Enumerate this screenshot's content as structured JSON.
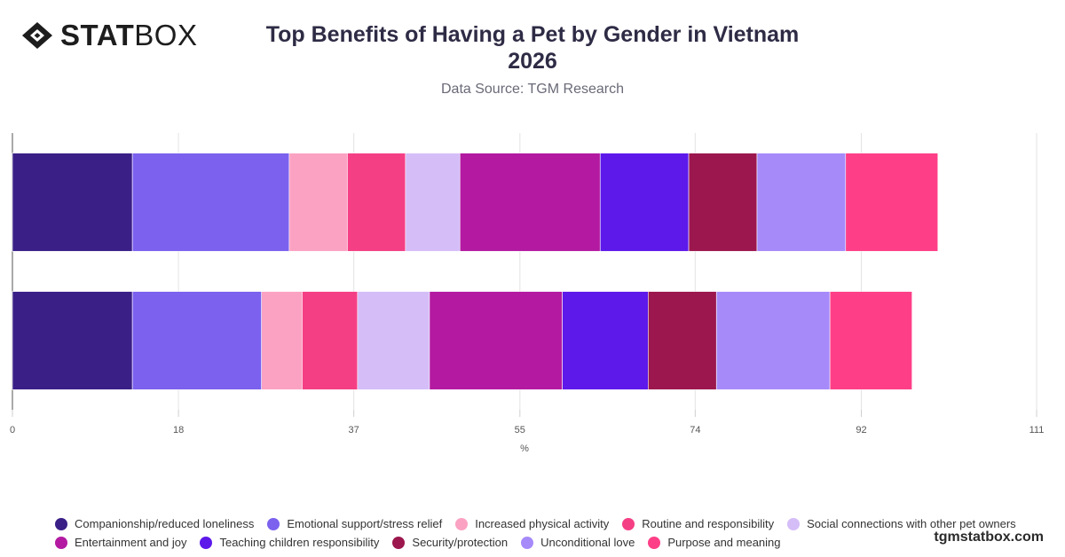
{
  "brand": {
    "logo_icon": "diamond-logo-icon",
    "name_bold": "STAT",
    "name_light": "BOX",
    "site": "tgmstatbox.com"
  },
  "header": {
    "title_line1": "Top Benefits of Having a Pet by Gender in Vietnam",
    "title_line2": "2026",
    "subtitle": "Data Source: TGM Research"
  },
  "chart_data": {
    "type": "bar",
    "orientation": "horizontal",
    "stacked": true,
    "categories": [
      "",
      ""
    ],
    "xlabel": "%",
    "ylabel": "",
    "xlim": [
      0,
      111
    ],
    "x_ticks": [
      0,
      18,
      37,
      55,
      74,
      92,
      111
    ],
    "grid": true,
    "legend_position": "bottom",
    "series": [
      {
        "name": "Companionship/reduced loneliness",
        "color": "#3a1f87",
        "values": [
          13,
          13
        ]
      },
      {
        "name": "Emotional support/stress relief",
        "color": "#7b61ee",
        "values": [
          17,
          14
        ]
      },
      {
        "name": "Increased physical activity",
        "color": "#fba2c2",
        "values": [
          6.3,
          4.4
        ]
      },
      {
        "name": "Routine and responsibility",
        "color": "#f53f85",
        "values": [
          6.3,
          6
        ]
      },
      {
        "name": "Social connections with other pet owners",
        "color": "#d5bdf8",
        "values": [
          5.9,
          7.8
        ]
      },
      {
        "name": "Entertainment and joy",
        "color": "#b31aa1",
        "values": [
          15.2,
          14.4
        ]
      },
      {
        "name": "Teaching children responsibility",
        "color": "#5d19ea",
        "values": [
          9.6,
          9.3
        ]
      },
      {
        "name": "Security/protection",
        "color": "#9c174e",
        "values": [
          7.4,
          7.4
        ]
      },
      {
        "name": "Unconditional love",
        "color": "#a68afa",
        "values": [
          9.6,
          12.3
        ]
      },
      {
        "name": "Purpose and meaning",
        "color": "#fe3f87",
        "values": [
          10,
          8.9
        ]
      }
    ]
  }
}
